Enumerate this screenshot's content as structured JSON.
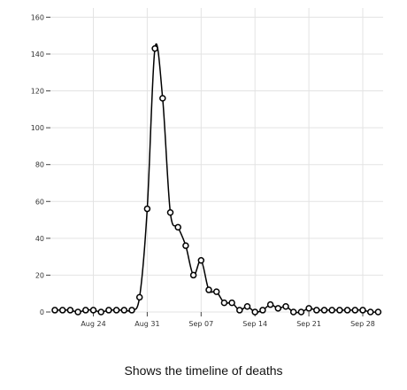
{
  "caption": "Shows the timeline of deaths",
  "chart_data": {
    "type": "line",
    "x_start": "2024-08-19",
    "x_step_days": 1,
    "x_ticks": [
      {
        "date": "2024-08-24",
        "label": "Aug 24"
      },
      {
        "date": "2024-08-31",
        "label": "Aug 31"
      },
      {
        "date": "2024-09-07",
        "label": "Sep 07"
      },
      {
        "date": "2024-09-14",
        "label": "Sep 14"
      },
      {
        "date": "2024-09-21",
        "label": "Sep 21"
      },
      {
        "date": "2024-09-28",
        "label": "Sep 28"
      }
    ],
    "y_ticks": [
      0,
      20,
      40,
      60,
      80,
      100,
      120,
      140,
      160
    ],
    "ylim": [
      0,
      165
    ],
    "grid": true,
    "values": [
      1,
      1,
      1,
      0,
      1,
      1,
      0,
      1,
      1,
      1,
      1,
      8,
      56,
      143,
      116,
      54,
      46,
      36,
      20,
      28,
      12,
      11,
      5,
      5,
      1,
      3,
      0,
      1,
      4,
      2,
      3,
      0,
      0,
      2,
      1,
      1,
      1,
      1,
      1,
      1,
      1,
      0,
      0
    ]
  }
}
